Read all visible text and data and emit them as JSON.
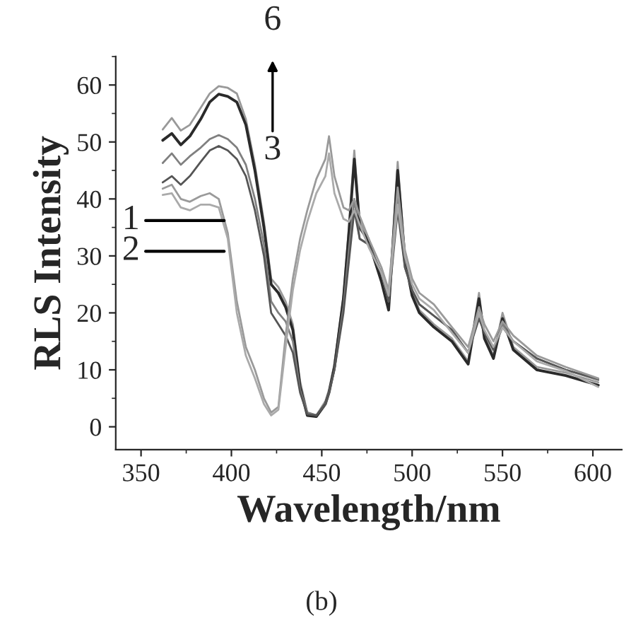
{
  "chart_data": {
    "type": "line",
    "xlabel": "Wavelength/nm",
    "ylabel": "RLS Intensity",
    "x": [
      362,
      367,
      372,
      377,
      383,
      388,
      393,
      398,
      403,
      408,
      413,
      418,
      422,
      426,
      430,
      434,
      438,
      442,
      447,
      452,
      454,
      457,
      462,
      465,
      468,
      471,
      476,
      483,
      487,
      492,
      496,
      500,
      504,
      512,
      522,
      531,
      537,
      540,
      545,
      550,
      556,
      569,
      585,
      603
    ],
    "series": [
      {
        "color": "#999999",
        "values": [
          52.2,
          54.2,
          52,
          53,
          56,
          58.5,
          59.8,
          59.5,
          58.5,
          54,
          46,
          36,
          26,
          24.5,
          22,
          18,
          8,
          2.5,
          2,
          4.5,
          6.5,
          11,
          23,
          35,
          48.5,
          36,
          33,
          26,
          21,
          46.5,
          30,
          23.5,
          20.5,
          18,
          15.5,
          11.5,
          23.5,
          16,
          12.5,
          20,
          14,
          10.5,
          9.5,
          7.8
        ]
      },
      {
        "color": "#2a2a2a",
        "values": [
          50.3,
          51.5,
          49.5,
          51,
          54,
          57,
          58.4,
          58,
          57,
          53,
          45,
          35,
          25,
          23.5,
          21,
          17,
          7,
          2,
          1.8,
          4,
          6,
          10.5,
          22.5,
          34,
          47,
          35,
          32.5,
          25.5,
          20.5,
          45,
          29.5,
          23,
          20,
          17.5,
          15,
          11,
          22.5,
          15.5,
          12,
          19,
          13.5,
          10,
          9,
          7.3
        ]
      },
      {
        "color": "#808080",
        "values": [
          46.3,
          48,
          46,
          47.5,
          49,
          50.5,
          51.2,
          50.5,
          49,
          46,
          40,
          32,
          22,
          20,
          18.5,
          15,
          6.5,
          2.5,
          2,
          4,
          6,
          10,
          21,
          31,
          40,
          33,
          32,
          27,
          22,
          40,
          28,
          24,
          21.5,
          19.5,
          17,
          13,
          20,
          16.5,
          13.5,
          18,
          15,
          12,
          10,
          8.2
        ]
      },
      {
        "color": "#555555",
        "values": [
          42.9,
          44,
          42.5,
          44,
          46.5,
          48.5,
          49.3,
          48.5,
          47,
          44,
          38,
          30,
          20,
          18,
          16,
          13,
          6,
          2.2,
          2,
          4,
          6,
          10,
          20,
          29,
          38,
          33,
          32,
          27,
          22,
          38,
          28,
          24,
          21.5,
          19.5,
          17,
          13,
          19,
          16.5,
          13.5,
          17.5,
          15,
          12,
          10,
          8.4
        ]
      },
      {
        "color": "#9a9a9a",
        "values": [
          41.8,
          42.5,
          40,
          39.5,
          40.5,
          41,
          40,
          34,
          22,
          14,
          10,
          5,
          2.5,
          3.5,
          16,
          26,
          33,
          38,
          43.5,
          47,
          51,
          44,
          38.5,
          38,
          40,
          37,
          33,
          28,
          24,
          42,
          31,
          26,
          23.5,
          21.5,
          17.5,
          14,
          21,
          18,
          15,
          18.5,
          16,
          12.5,
          10.5,
          8.5
        ]
      },
      {
        "color": "#aaaaaa",
        "values": [
          40.7,
          41,
          38.5,
          38,
          39,
          39,
          38.5,
          33,
          20,
          12.5,
          8.5,
          4,
          2,
          3,
          14,
          24,
          31,
          36,
          41,
          44,
          48,
          41,
          36.5,
          36,
          38,
          35.5,
          31.5,
          27,
          23,
          39,
          30,
          25,
          22.5,
          20.5,
          16.5,
          13,
          20,
          17,
          14,
          17.5,
          15,
          11.5,
          9.8,
          7
        ]
      }
    ],
    "xlim": [
      336,
      616
    ],
    "ylim": [
      -4,
      65
    ],
    "xticks": [
      350,
      400,
      450,
      500,
      550,
      600
    ],
    "yticks": [
      0,
      10,
      20,
      30,
      40,
      50,
      60
    ],
    "grid": false,
    "legend": false,
    "marker": "none",
    "line_style": "solid",
    "annotations": [
      {
        "text": "1",
        "x": 396,
        "y": 36.2
      },
      {
        "text": "2",
        "x": 396,
        "y": 30.8
      },
      "3",
      "6",
      "(b)"
    ]
  }
}
